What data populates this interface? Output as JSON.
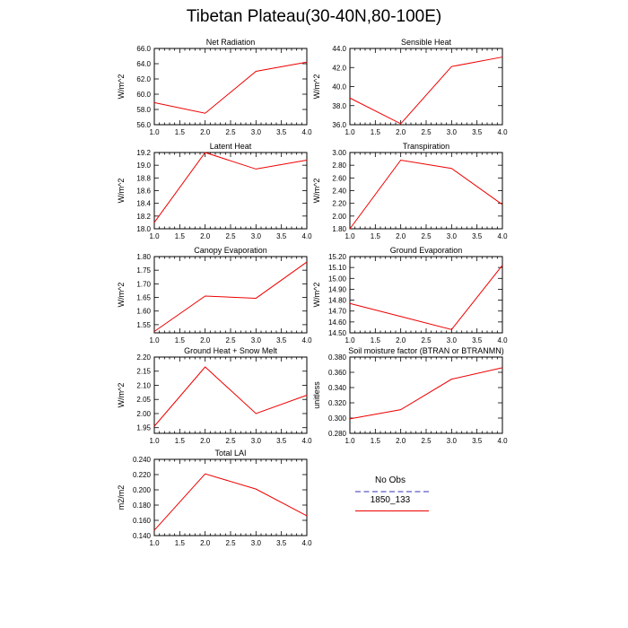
{
  "title": "Tibetan Plateau(30-40N,80-100E)",
  "legend": {
    "entries": [
      {
        "label": "No Obs",
        "color": "#9999dd",
        "style": "dashed"
      },
      {
        "label": "1850_133",
        "color": "#ee0000",
        "style": "solid"
      }
    ]
  },
  "chart_data": [
    {
      "type": "line",
      "title": "Net Radiation",
      "ylabel": "W/m^2",
      "x": [
        1.0,
        2.0,
        3.0,
        4.0
      ],
      "values": [
        58.9,
        57.5,
        63.0,
        64.2
      ],
      "xlim": [
        1.0,
        4.0
      ],
      "ylim": [
        56.0,
        66.0
      ],
      "xticks": [
        "1.0",
        "1.5",
        "2.0",
        "2.5",
        "3.0",
        "3.5",
        "4.0"
      ],
      "yticks": [
        "56.0",
        "58.0",
        "60.0",
        "62.0",
        "64.0",
        "66.0"
      ],
      "color": "#ee0000"
    },
    {
      "type": "line",
      "title": "Sensible Heat",
      "ylabel": "W/m^2",
      "x": [
        1.0,
        2.0,
        3.0,
        4.0
      ],
      "values": [
        38.8,
        36.1,
        42.1,
        43.1
      ],
      "xlim": [
        1.0,
        4.0
      ],
      "ylim": [
        36.0,
        44.0
      ],
      "xticks": [
        "1.0",
        "1.5",
        "2.0",
        "2.5",
        "3.0",
        "3.5",
        "4.0"
      ],
      "yticks": [
        "36.0",
        "38.0",
        "40.0",
        "42.0",
        "44.0"
      ],
      "color": "#ee0000"
    },
    {
      "type": "line",
      "title": "Latent Heat",
      "ylabel": "W/m^2",
      "x": [
        1.0,
        2.0,
        3.0,
        4.0
      ],
      "values": [
        18.1,
        19.2,
        18.94,
        19.08
      ],
      "xlim": [
        1.0,
        4.0
      ],
      "ylim": [
        18.0,
        19.2
      ],
      "xticks": [
        "1.0",
        "1.5",
        "2.0",
        "2.5",
        "3.0",
        "3.5",
        "4.0"
      ],
      "yticks": [
        "18.0",
        "18.2",
        "18.4",
        "18.6",
        "18.8",
        "19.0",
        "19.2"
      ],
      "color": "#ee0000"
    },
    {
      "type": "line",
      "title": "Transpiration",
      "ylabel": "W/m^2",
      "x": [
        1.0,
        2.0,
        3.0,
        4.0
      ],
      "values": [
        1.8,
        2.88,
        2.75,
        2.18
      ],
      "xlim": [
        1.0,
        4.0
      ],
      "ylim": [
        1.8,
        3.0
      ],
      "xticks": [
        "1.0",
        "1.5",
        "2.0",
        "2.5",
        "3.0",
        "3.5",
        "4.0"
      ],
      "yticks": [
        "1.80",
        "2.00",
        "2.20",
        "2.40",
        "2.60",
        "2.80",
        "3.00"
      ],
      "color": "#ee0000"
    },
    {
      "type": "line",
      "title": "Canopy Evaporation",
      "ylabel": "W/m^2",
      "x": [
        1.0,
        2.0,
        3.0,
        4.0
      ],
      "values": [
        1.525,
        1.655,
        1.647,
        1.78
      ],
      "xlim": [
        1.0,
        4.0
      ],
      "ylim": [
        1.52,
        1.8
      ],
      "xticks": [
        "1.0",
        "1.5",
        "2.0",
        "2.5",
        "3.0",
        "3.5",
        "4.0"
      ],
      "yticks": [
        "1.55",
        "1.60",
        "1.65",
        "1.70",
        "1.75",
        "1.80"
      ],
      "color": "#ee0000"
    },
    {
      "type": "line",
      "title": "Ground Evaporation",
      "ylabel": "W/m^2",
      "x": [
        1.0,
        2.0,
        3.0,
        4.0
      ],
      "values": [
        14.77,
        14.65,
        14.53,
        15.12
      ],
      "xlim": [
        1.0,
        4.0
      ],
      "ylim": [
        14.5,
        15.2
      ],
      "xticks": [
        "1.0",
        "1.5",
        "2.0",
        "2.5",
        "3.0",
        "3.5",
        "4.0"
      ],
      "yticks": [
        "14.50",
        "14.60",
        "14.70",
        "14.80",
        "14.90",
        "15.00",
        "15.10",
        "15.20"
      ],
      "color": "#ee0000"
    },
    {
      "type": "line",
      "title": "Ground Heat + Snow Melt",
      "ylabel": "W/m^2",
      "x": [
        1.0,
        2.0,
        3.0,
        4.0
      ],
      "values": [
        1.955,
        2.165,
        2.0,
        2.065
      ],
      "xlim": [
        1.0,
        4.0
      ],
      "ylim": [
        1.93,
        2.2
      ],
      "xticks": [
        "1.0",
        "1.5",
        "2.0",
        "2.5",
        "3.0",
        "3.5",
        "4.0"
      ],
      "yticks": [
        "1.95",
        "2.00",
        "2.05",
        "2.10",
        "2.15",
        "2.20"
      ],
      "color": "#ee0000"
    },
    {
      "type": "line",
      "title": "Soil moisture factor (BTRAN or BTRANMN)",
      "ylabel": "unitless",
      "x": [
        1.0,
        2.0,
        3.0,
        4.0
      ],
      "values": [
        0.299,
        0.311,
        0.351,
        0.366
      ],
      "xlim": [
        1.0,
        4.0
      ],
      "ylim": [
        0.28,
        0.38
      ],
      "xticks": [
        "1.0",
        "1.5",
        "2.0",
        "2.5",
        "3.0",
        "3.5",
        "4.0"
      ],
      "yticks": [
        "0.280",
        "0.300",
        "0.320",
        "0.340",
        "0.360",
        "0.380"
      ],
      "color": "#ee0000"
    },
    {
      "type": "line",
      "title": "Total LAI",
      "ylabel": "m2/m2",
      "x": [
        1.0,
        2.0,
        3.0,
        4.0
      ],
      "values": [
        0.147,
        0.221,
        0.201,
        0.166
      ],
      "xlim": [
        1.0,
        4.0
      ],
      "ylim": [
        0.14,
        0.24
      ],
      "xticks": [
        "1.0",
        "1.5",
        "2.0",
        "2.5",
        "3.0",
        "3.5",
        "4.0"
      ],
      "yticks": [
        "0.140",
        "0.160",
        "0.180",
        "0.200",
        "0.220",
        "0.240"
      ],
      "color": "#ee0000"
    }
  ]
}
